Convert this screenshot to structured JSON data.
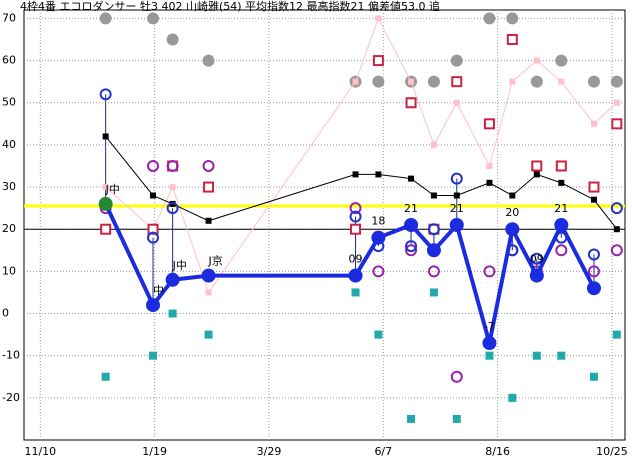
{
  "chart_data": {
    "type": "line",
    "title": "4枠4番 エコロダンサー 牡3 402 山崎雅(54) 平均指数12 最高指数21 偏差値53.0 追",
    "x": [
      40,
      69,
      81,
      103,
      193,
      207,
      227,
      241,
      255,
      275,
      289,
      304,
      319,
      339,
      353
    ],
    "xlim": [
      -10,
      358
    ],
    "xticks": [
      {
        "value": 0,
        "label": "11/10"
      },
      {
        "value": 70,
        "label": "1/19"
      },
      {
        "value": 140,
        "label": "3/29"
      },
      {
        "value": 210,
        "label": "6/7"
      },
      {
        "value": 280,
        "label": "8/16"
      },
      {
        "value": 350,
        "label": "10/25"
      }
    ],
    "ylim": [
      -30,
      72
    ],
    "yticks": [
      -20,
      -10,
      0,
      10,
      20,
      30,
      40,
      50,
      60,
      70
    ],
    "grid": true,
    "reference_lines": [
      {
        "value": 25.5,
        "color": "#ffff00"
      },
      {
        "value": 20,
        "color": "#000000"
      }
    ],
    "series": [
      {
        "marker": "gray-dot",
        "color": "#999999",
        "values": [
          70,
          70,
          65,
          60,
          55,
          55,
          55,
          55,
          60,
          70,
          70,
          55,
          60,
          55,
          55
        ]
      },
      {
        "marker": "line-dot",
        "color": "#ffc0cb",
        "values": [
          30,
          20,
          30,
          5,
          55,
          70,
          55,
          40,
          50,
          35,
          55,
          60,
          55,
          45,
          50
        ]
      },
      {
        "marker": "line-dot",
        "color": "#000000",
        "values": [
          42,
          28,
          26,
          22,
          33,
          33,
          32,
          28,
          28,
          31,
          28,
          33,
          31,
          27,
          20
        ]
      },
      {
        "marker": "hollow-square",
        "color": "#cc2244",
        "values": [
          20,
          20,
          35,
          30,
          20,
          60,
          50,
          20,
          55,
          45,
          65,
          35,
          35,
          30,
          45
        ]
      },
      {
        "marker": "hollow-circle",
        "color": "#9922aa",
        "values": [
          25,
          35,
          35,
          35,
          25,
          10,
          15,
          10,
          -15,
          10,
          15,
          10,
          15,
          10,
          15
        ]
      },
      {
        "marker": "square",
        "color": "#22aaaa",
        "values": [
          -15,
          -10,
          0,
          -5,
          5,
          -5,
          -25,
          5,
          -25,
          -10,
          -20,
          -10,
          -10,
          -15,
          -5
        ]
      },
      {
        "marker": "hollow-circle",
        "color": "#2233cc",
        "values": [
          52,
          18,
          25,
          null,
          23,
          16,
          16,
          20,
          32,
          null,
          15,
          13,
          18,
          14,
          25
        ]
      },
      {
        "marker": "race",
        "color": "#1a2be0",
        "values": [
          26,
          2,
          8,
          9,
          9,
          18,
          21,
          15,
          21,
          -7,
          20,
          9,
          21,
          6,
          null
        ],
        "value_labels": [
          null,
          null,
          null,
          null,
          "09",
          "18",
          "21",
          null,
          "21",
          "-7",
          "20",
          "09",
          "21",
          null,
          null
        ],
        "notes": [
          "J中",
          "中",
          "J中",
          "J京",
          null,
          null,
          null,
          null,
          null,
          null,
          null,
          null,
          null,
          null,
          null
        ]
      }
    ]
  }
}
